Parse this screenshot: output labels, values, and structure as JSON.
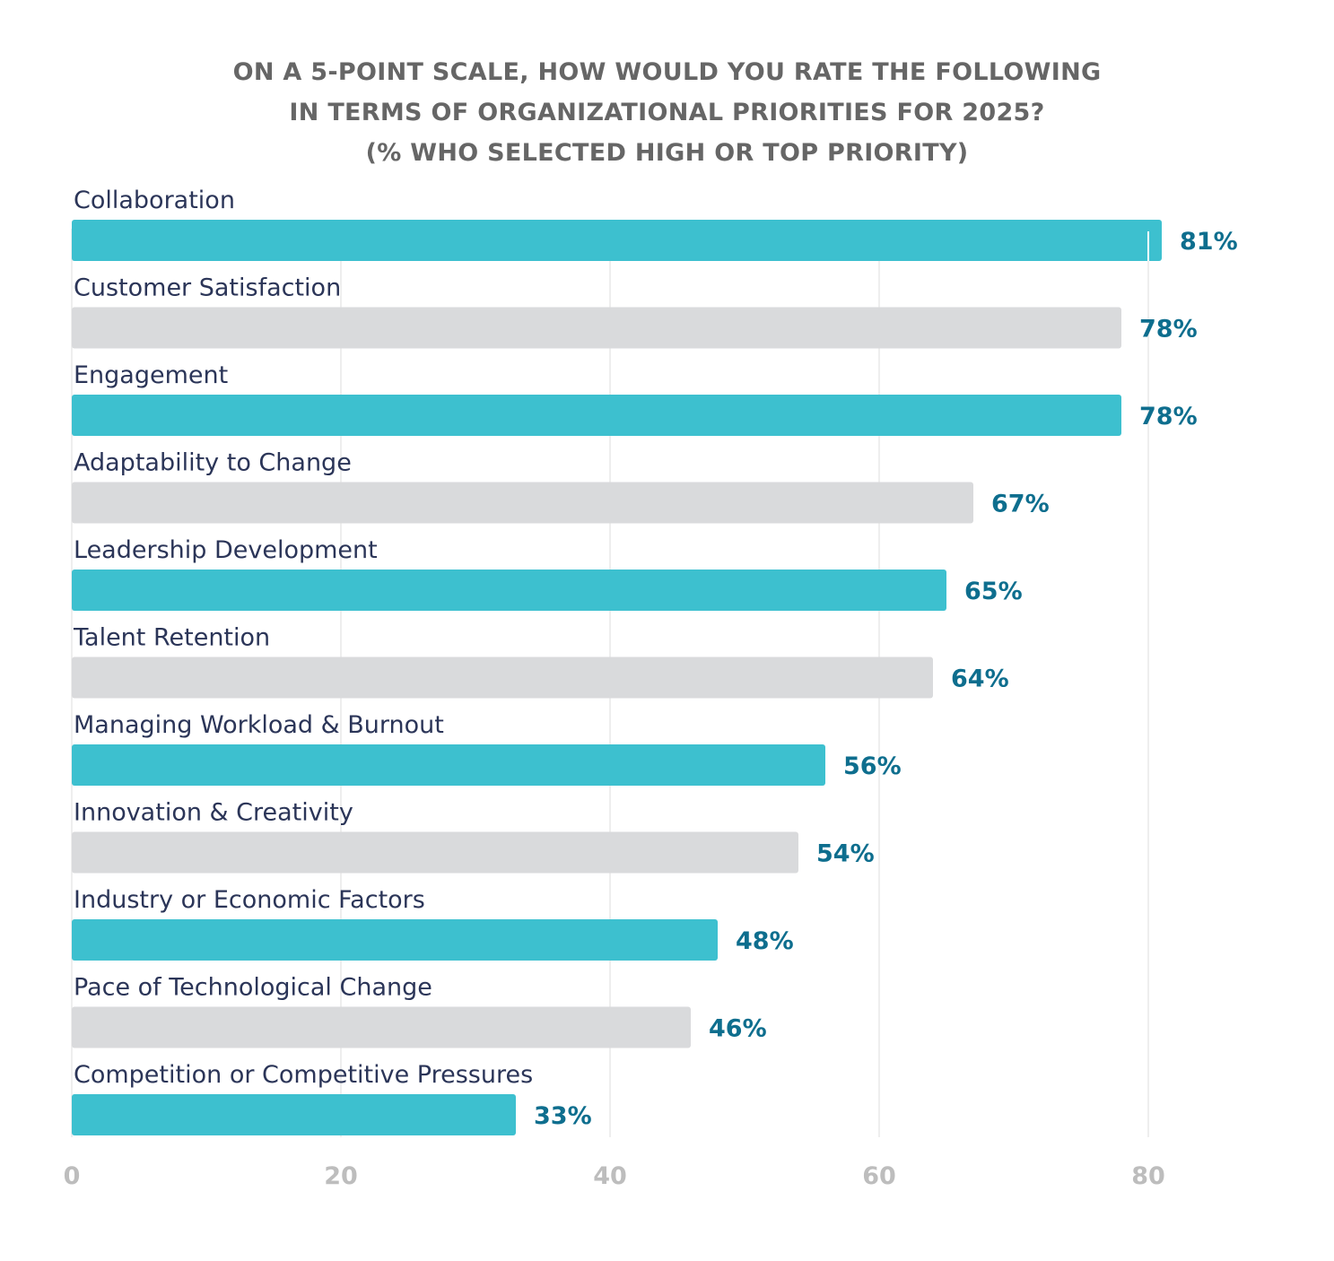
{
  "chart_data": {
    "type": "bar",
    "orientation": "horizontal",
    "title": [
      "ON A 5-POINT SCALE, HOW WOULD YOU RATE THE FOLLOWING",
      "IN TERMS OF ORGANIZATIONAL PRIORITIES FOR 2025?",
      "(% WHO SELECTED HIGH OR TOP PRIORITY)"
    ],
    "categories": [
      "Collaboration",
      "Customer Satisfaction",
      "Engagement",
      "Adaptability to Change",
      "Leadership Development",
      "Talent Retention",
      "Managing Workload & Burnout",
      "Innovation & Creativity",
      "Industry or Economic Factors",
      "Pace of Technological Change",
      "Competition or Competitive Pressures"
    ],
    "values": [
      81,
      78,
      78,
      67,
      65,
      64,
      56,
      54,
      48,
      46,
      33
    ],
    "value_labels": [
      "81%",
      "78%",
      "78%",
      "67%",
      "65%",
      "64%",
      "56%",
      "54%",
      "48%",
      "46%",
      "33%"
    ],
    "xlim": [
      0,
      80
    ],
    "xticks": [
      0,
      20,
      40,
      60,
      80
    ],
    "grid": true,
    "colors": {
      "odd": "#3dc0cf",
      "even": "#d9dadc",
      "value_text": "#0e6e8e",
      "label_text": "#2b3558"
    }
  }
}
